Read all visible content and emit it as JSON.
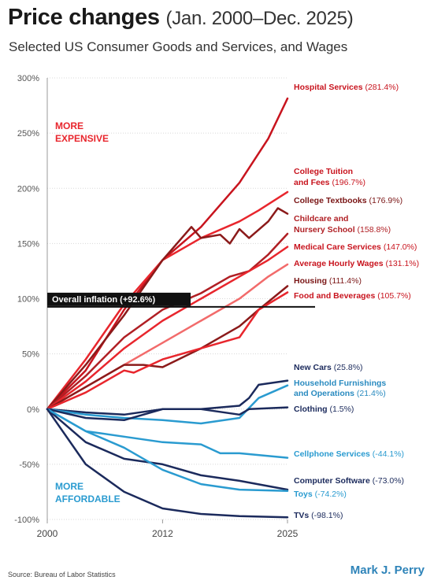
{
  "title_main": "Price changes",
  "title_range": "(Jan. 2000–Dec. 2025)",
  "subtitle": "Selected US Consumer Goods and Services, and Wages",
  "source": "Source:  Bureau of Labor Statistics",
  "credit": "Mark J. Perry",
  "chart_data": {
    "type": "line",
    "title": "Price changes (Jan. 2000–Dec. 2025)",
    "subtitle": "Selected US Consumer Goods and Services, and Wages",
    "xlabel": "",
    "ylabel": "",
    "xlim": [
      2000,
      2025
    ],
    "ylim": [
      -100,
      300
    ],
    "x_ticks": [
      "2000",
      "2012",
      "2025"
    ],
    "y_ticks": [
      "300%",
      "250%",
      "200%",
      "150%",
      "100%",
      "50%",
      "0%",
      "-50%",
      "-100%"
    ],
    "y_tick_values": [
      300,
      250,
      200,
      150,
      100,
      50,
      0,
      -50,
      -100
    ],
    "annotations": {
      "more_expensive": [
        "MORE",
        "EXPENSIVE"
      ],
      "more_affordable": [
        "MORE",
        "AFFORDABLE"
      ],
      "inflation_label": "Overall inflation (+92.6%)",
      "inflation_value": 92.6
    },
    "series": [
      {
        "name": "Hospital Services",
        "change": "(281.4%)",
        "color": "#c8141e",
        "label_color": "#c8141e",
        "x": [
          2000,
          2004,
          2008,
          2012,
          2016,
          2020,
          2023,
          2025
        ],
        "values": [
          0,
          35,
          90,
          135,
          165,
          205,
          245,
          281.4
        ]
      },
      {
        "name": "College Tuition and Fees",
        "change": "(196.7%)",
        "color": "#e8262d",
        "label_color": "#c8141e",
        "x": [
          2000,
          2004,
          2008,
          2012,
          2016,
          2020,
          2022,
          2025
        ],
        "values": [
          0,
          45,
          95,
          135,
          155,
          170,
          180,
          196.7
        ]
      },
      {
        "name": "College Textbooks",
        "change": "(176.9%)",
        "color": "#8b1a1a",
        "label_color": "#7a1515",
        "x": [
          2000,
          2004,
          2008,
          2012,
          2015,
          2016,
          2018,
          2019,
          2020,
          2021,
          2023,
          2024,
          2025
        ],
        "values": [
          0,
          40,
          85,
          135,
          165,
          155,
          158,
          150,
          163,
          155,
          170,
          182,
          176.9
        ]
      },
      {
        "name": "Childcare and Nursery School",
        "change": "(158.8%)",
        "color": "#b01f24",
        "label_color": "#b01f24",
        "x": [
          2000,
          2004,
          2008,
          2012,
          2016,
          2019,
          2021,
          2023,
          2025
        ],
        "values": [
          0,
          30,
          65,
          90,
          105,
          120,
          125,
          140,
          158.8
        ]
      },
      {
        "name": "Medical Care Services",
        "change": "(147.0%)",
        "color": "#e8262d",
        "label_color": "#c8141e",
        "x": [
          2000,
          2004,
          2008,
          2012,
          2016,
          2020,
          2023,
          2025
        ],
        "values": [
          0,
          25,
          55,
          80,
          100,
          120,
          135,
          147.0
        ]
      },
      {
        "name": "Average Hourly Wages",
        "change": "(131.1%)",
        "color": "#f26b6b",
        "label_color": "#c8141e",
        "x": [
          2000,
          2004,
          2008,
          2012,
          2016,
          2020,
          2023,
          2025
        ],
        "values": [
          0,
          20,
          40,
          60,
          80,
          100,
          120,
          131.1
        ]
      },
      {
        "name": "Housing",
        "change": "(111.4%)",
        "color": "#8b1a1a",
        "label_color": "#7a1515",
        "x": [
          2000,
          2004,
          2008,
          2010,
          2012,
          2016,
          2020,
          2022,
          2025
        ],
        "values": [
          0,
          20,
          40,
          40,
          38,
          55,
          75,
          90,
          111.4
        ]
      },
      {
        "name": "Food and Beverages",
        "change": "(105.7%)",
        "color": "#e8262d",
        "label_color": "#c8141e",
        "x": [
          2000,
          2004,
          2008,
          2009,
          2012,
          2016,
          2020,
          2022,
          2025
        ],
        "values": [
          0,
          15,
          35,
          33,
          45,
          55,
          65,
          90,
          105.7
        ]
      },
      {
        "name": "New Cars",
        "change": "(25.8%)",
        "color": "#1b2a5c",
        "label_color": "#1b2a5c",
        "x": [
          2000,
          2004,
          2008,
          2012,
          2016,
          2020,
          2021,
          2022,
          2025
        ],
        "values": [
          0,
          -3,
          -5,
          0,
          0,
          3,
          10,
          22,
          25.8
        ]
      },
      {
        "name": "Household Furnishings and Operations",
        "change": "(21.4%)",
        "color": "#2a9bd0",
        "label_color": "#2a8bc0",
        "x": [
          2000,
          2004,
          2008,
          2012,
          2016,
          2020,
          2022,
          2025
        ],
        "values": [
          0,
          -5,
          -8,
          -10,
          -13,
          -8,
          10,
          21.4
        ]
      },
      {
        "name": "Clothing",
        "change": "(1.5%)",
        "color": "#1b2a5c",
        "label_color": "#1b2a5c",
        "x": [
          2000,
          2004,
          2008,
          2012,
          2016,
          2020,
          2021,
          2025
        ],
        "values": [
          0,
          -8,
          -10,
          0,
          0,
          -5,
          0,
          1.5
        ]
      },
      {
        "name": "Cellphone Services",
        "change": "(-44.1%)",
        "color": "#2a9bd0",
        "label_color": "#2a9bd0",
        "x": [
          2000,
          2004,
          2008,
          2012,
          2016,
          2018,
          2020,
          2025
        ],
        "values": [
          0,
          -20,
          -25,
          -30,
          -32,
          -40,
          -40,
          -44.1
        ]
      },
      {
        "name": "Computer Software",
        "change": "(-73.0%)",
        "color": "#1b2a5c",
        "label_color": "#1b2a5c",
        "x": [
          2000,
          2004,
          2008,
          2012,
          2016,
          2020,
          2025
        ],
        "values": [
          0,
          -30,
          -45,
          -50,
          -60,
          -65,
          -73.0
        ]
      },
      {
        "name": "Toys",
        "change": "(-74.2%)",
        "color": "#2a9bd0",
        "label_color": "#2a9bd0",
        "x": [
          2000,
          2004,
          2008,
          2012,
          2016,
          2020,
          2025
        ],
        "values": [
          0,
          -20,
          -35,
          -55,
          -68,
          -73,
          -74.2
        ]
      },
      {
        "name": "TVs",
        "change": "(-98.1%)",
        "color": "#1b2a5c",
        "label_color": "#1b2a5c",
        "x": [
          2000,
          2004,
          2008,
          2012,
          2016,
          2020,
          2025
        ],
        "values": [
          0,
          -50,
          -75,
          -90,
          -95,
          -97,
          -98.1
        ]
      }
    ]
  }
}
